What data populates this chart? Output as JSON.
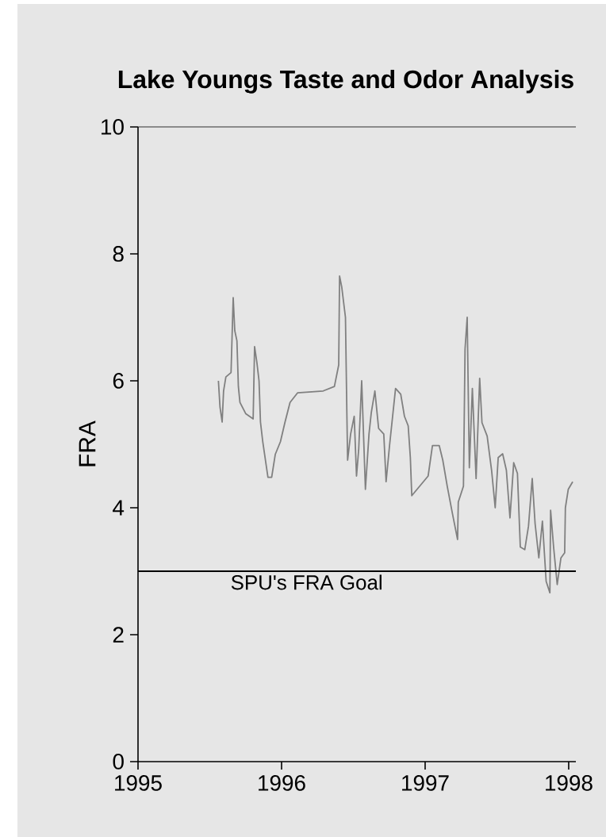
{
  "chart_data": {
    "type": "line",
    "title": "Lake Youngs Taste and Odor Analysis",
    "ylabel": "FRA",
    "x": [
      1995.56,
      1995.571,
      1995.586,
      1995.596,
      1995.612,
      1995.648,
      1995.663,
      1995.674,
      1995.689,
      1995.699,
      1995.71,
      1995.751,
      1995.802,
      1995.812,
      1995.828,
      1995.843,
      1995.853,
      1995.869,
      1995.905,
      1995.931,
      1995.956,
      1995.992,
      1996.023,
      1996.059,
      1996.111,
      1996.29,
      1996.368,
      1996.398,
      1996.404,
      1996.419,
      1996.445,
      1996.455,
      1996.46,
      1996.481,
      1996.506,
      1996.522,
      1996.537,
      1996.558,
      1996.584,
      1996.609,
      1996.625,
      1996.65,
      1996.676,
      1996.712,
      1996.728,
      1996.753,
      1996.794,
      1996.83,
      1996.856,
      1996.882,
      1996.897,
      1996.907,
      1997.021,
      1997.051,
      1997.098,
      1997.123,
      1997.154,
      1997.19,
      1997.226,
      1997.231,
      1997.267,
      1997.278,
      1997.293,
      1997.303,
      1997.308,
      1997.329,
      1997.355,
      1997.38,
      1997.396,
      1997.432,
      1997.463,
      1997.488,
      1997.509,
      1997.54,
      1997.566,
      1997.591,
      1997.617,
      1997.643,
      1997.663,
      1997.694,
      1997.72,
      1997.746,
      1997.766,
      1997.792,
      1997.817,
      1997.843,
      1997.869,
      1997.874,
      1997.895,
      1997.92,
      1997.946,
      1997.972,
      1997.977,
      1997.997,
      1998.028
    ],
    "values": [
      6.0,
      5.59,
      5.35,
      5.84,
      6.06,
      6.13,
      7.31,
      6.79,
      6.63,
      5.91,
      5.66,
      5.48,
      5.4,
      6.54,
      6.29,
      6.0,
      5.35,
      5.04,
      4.48,
      4.48,
      4.84,
      5.04,
      5.34,
      5.66,
      5.81,
      5.84,
      5.91,
      6.25,
      7.65,
      7.48,
      7.0,
      5.46,
      4.75,
      5.16,
      5.44,
      4.5,
      4.91,
      6.0,
      4.29,
      5.16,
      5.5,
      5.84,
      5.25,
      5.16,
      4.41,
      5.0,
      5.88,
      5.79,
      5.44,
      5.29,
      4.79,
      4.19,
      4.5,
      4.98,
      4.98,
      4.75,
      4.34,
      3.91,
      3.5,
      4.09,
      4.34,
      6.5,
      7.0,
      5.41,
      4.63,
      5.88,
      4.46,
      6.04,
      5.34,
      5.13,
      4.59,
      4.0,
      4.79,
      4.85,
      4.59,
      3.84,
      4.71,
      4.54,
      3.38,
      3.34,
      3.71,
      4.46,
      3.75,
      3.21,
      3.79,
      2.84,
      2.66,
      3.96,
      3.38,
      2.79,
      3.21,
      3.29,
      4.0,
      4.29,
      4.41
    ],
    "color": "#808080",
    "marker": "none",
    "xlim": [
      1995,
      1998.05
    ],
    "xticks": [
      1995,
      1996,
      1997,
      1998
    ],
    "ylim": [
      0,
      10
    ],
    "yticks": [
      0,
      2,
      4,
      6,
      8,
      10
    ],
    "ref_lines": [
      {
        "axis": "y",
        "value": 3,
        "label": "SPU's FRA Goal",
        "color": "#000000"
      }
    ]
  }
}
